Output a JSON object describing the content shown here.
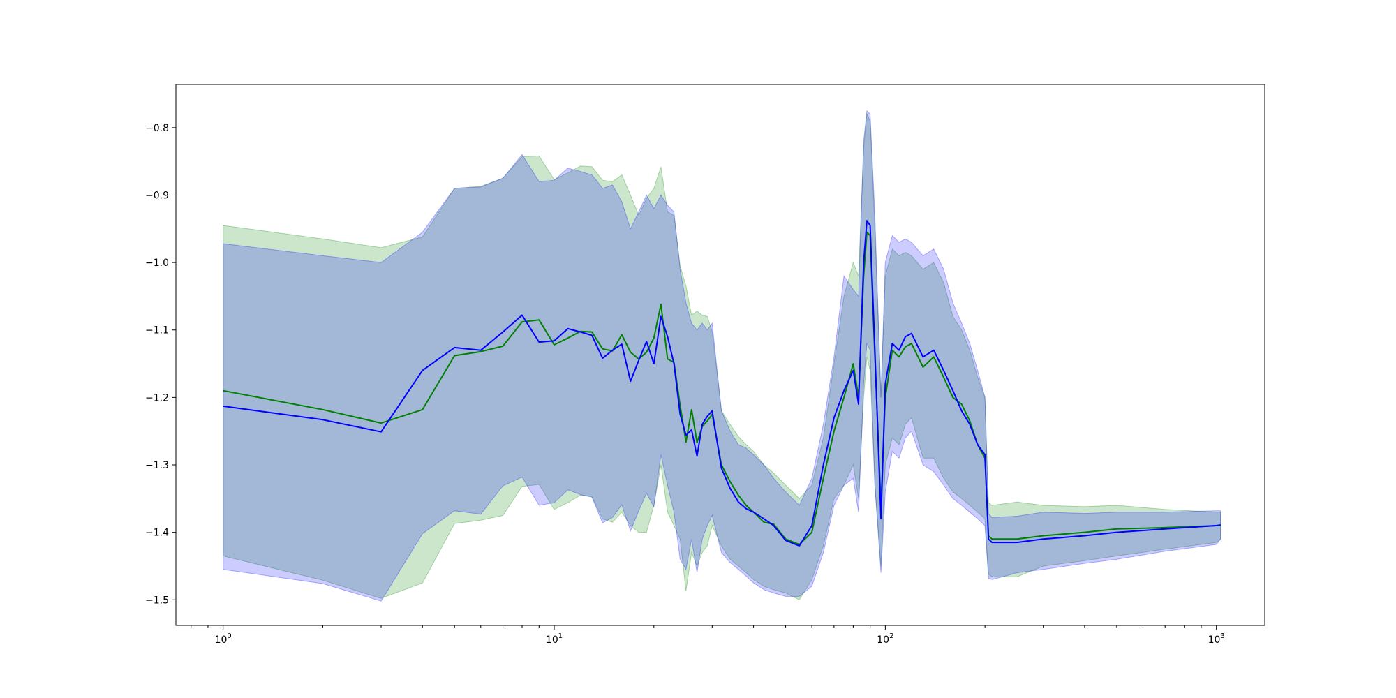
{
  "chart_data": {
    "type": "area",
    "title": "",
    "xlabel": "",
    "ylabel": "",
    "xscale": "log",
    "xlim": [
      0.72,
      1400
    ],
    "ylim": [
      -1.538,
      -0.736
    ],
    "grid": false,
    "legend": "none",
    "x_tick_labels": [
      {
        "value": 1,
        "base": "10",
        "exp": "0"
      },
      {
        "value": 10,
        "base": "10",
        "exp": "1"
      },
      {
        "value": 100,
        "base": "10",
        "exp": "2"
      },
      {
        "value": 1000,
        "base": "10",
        "exp": "3"
      }
    ],
    "y_ticks": [
      -0.8,
      -0.9,
      -1.0,
      -1.1,
      -1.2,
      -1.3,
      -1.4,
      -1.5
    ],
    "y_tick_labels": [
      "−0.8",
      "−0.9",
      "−1.0",
      "−1.1",
      "−1.2",
      "−1.3",
      "−1.4",
      "−1.5"
    ],
    "series": [
      {
        "color": "#008000",
        "band_color": "#008000",
        "band_opacity": 0.2,
        "x": [
          1,
          2,
          3,
          4,
          5,
          6,
          7,
          8,
          9,
          10,
          11,
          12,
          13,
          14,
          15,
          16,
          17,
          18,
          19,
          20,
          21,
          22,
          23,
          24,
          25,
          26,
          27,
          28,
          29,
          30,
          32,
          34,
          36,
          38,
          40,
          43,
          46,
          50,
          55,
          60,
          65,
          70,
          75,
          80,
          83,
          86,
          88,
          90,
          93,
          97,
          100,
          105,
          110,
          115,
          120,
          130,
          140,
          150,
          160,
          170,
          180,
          190,
          200,
          205,
          210,
          250,
          300,
          400,
          500,
          700,
          1000,
          1030
        ],
        "mean": [
          -1.19,
          -1.218,
          -1.238,
          -1.218,
          -1.138,
          -1.132,
          -1.124,
          -1.088,
          -1.085,
          -1.122,
          -1.112,
          -1.102,
          -1.103,
          -1.128,
          -1.131,
          -1.107,
          -1.133,
          -1.143,
          -1.133,
          -1.112,
          -1.062,
          -1.143,
          -1.148,
          -1.212,
          -1.266,
          -1.218,
          -1.267,
          -1.243,
          -1.235,
          -1.225,
          -1.3,
          -1.325,
          -1.345,
          -1.36,
          -1.37,
          -1.385,
          -1.388,
          -1.41,
          -1.418,
          -1.4,
          -1.32,
          -1.25,
          -1.2,
          -1.15,
          -1.2,
          -1.02,
          -0.955,
          -0.96,
          -1.14,
          -1.36,
          -1.2,
          -1.13,
          -1.14,
          -1.125,
          -1.12,
          -1.155,
          -1.14,
          -1.17,
          -1.2,
          -1.21,
          -1.235,
          -1.27,
          -1.29,
          -1.405,
          -1.41,
          -1.41,
          -1.405,
          -1.4,
          -1.395,
          -1.393,
          -1.39,
          -1.39
        ],
        "upper": [
          -0.945,
          -0.965,
          -0.978,
          -0.962,
          -0.89,
          -0.887,
          -0.875,
          -0.843,
          -0.842,
          -0.877,
          -0.867,
          -0.857,
          -0.858,
          -0.878,
          -0.88,
          -0.87,
          -0.9,
          -0.93,
          -0.905,
          -0.89,
          -0.858,
          -0.925,
          -0.93,
          -1.005,
          -1.035,
          -1.078,
          -1.072,
          -1.078,
          -1.08,
          -1.102,
          -1.22,
          -1.24,
          -1.258,
          -1.27,
          -1.28,
          -1.3,
          -1.312,
          -1.33,
          -1.35,
          -1.33,
          -1.26,
          -1.15,
          -1.05,
          -1.0,
          -1.02,
          -0.83,
          -0.78,
          -0.79,
          -0.95,
          -1.2,
          -1.02,
          -0.98,
          -0.99,
          -0.985,
          -0.99,
          -1.01,
          -1.0,
          -1.03,
          -1.08,
          -1.1,
          -1.13,
          -1.17,
          -1.2,
          -1.356,
          -1.36,
          -1.355,
          -1.36,
          -1.362,
          -1.36,
          -1.366,
          -1.37,
          -1.37
        ],
        "lower": [
          -1.435,
          -1.471,
          -1.498,
          -1.475,
          -1.387,
          -1.382,
          -1.375,
          -1.332,
          -1.329,
          -1.366,
          -1.356,
          -1.345,
          -1.347,
          -1.38,
          -1.385,
          -1.37,
          -1.39,
          -1.4,
          -1.4,
          -1.36,
          -1.3,
          -1.37,
          -1.39,
          -1.41,
          -1.487,
          -1.43,
          -1.45,
          -1.43,
          -1.42,
          -1.39,
          -1.42,
          -1.44,
          -1.45,
          -1.46,
          -1.47,
          -1.48,
          -1.485,
          -1.49,
          -1.5,
          -1.47,
          -1.42,
          -1.35,
          -1.33,
          -1.3,
          -1.35,
          -1.2,
          -1.14,
          -1.16,
          -1.33,
          -1.45,
          -1.3,
          -1.26,
          -1.27,
          -1.24,
          -1.23,
          -1.29,
          -1.29,
          -1.32,
          -1.34,
          -1.35,
          -1.36,
          -1.37,
          -1.38,
          -1.462,
          -1.466,
          -1.466,
          -1.45,
          -1.442,
          -1.435,
          -1.425,
          -1.415,
          -1.41
        ]
      },
      {
        "color": "#0000ff",
        "band_color": "#0000ff",
        "band_opacity": 0.2,
        "x": [
          1,
          2,
          3,
          4,
          5,
          6,
          7,
          8,
          9,
          10,
          11,
          12,
          13,
          14,
          15,
          16,
          17,
          18,
          19,
          20,
          21,
          22,
          23,
          24,
          25,
          26,
          27,
          28,
          29,
          30,
          32,
          34,
          36,
          38,
          40,
          43,
          46,
          50,
          55,
          60,
          65,
          70,
          75,
          80,
          83,
          86,
          88,
          90,
          93,
          97,
          100,
          105,
          110,
          115,
          120,
          130,
          140,
          150,
          160,
          170,
          180,
          190,
          200,
          205,
          210,
          250,
          300,
          400,
          500,
          700,
          1000,
          1030
        ],
        "mean": [
          -1.213,
          -1.233,
          -1.251,
          -1.16,
          -1.126,
          -1.13,
          -1.103,
          -1.078,
          -1.118,
          -1.116,
          -1.098,
          -1.103,
          -1.108,
          -1.142,
          -1.13,
          -1.121,
          -1.176,
          -1.145,
          -1.117,
          -1.15,
          -1.08,
          -1.11,
          -1.15,
          -1.225,
          -1.256,
          -1.248,
          -1.287,
          -1.24,
          -1.228,
          -1.22,
          -1.305,
          -1.335,
          -1.355,
          -1.365,
          -1.37,
          -1.38,
          -1.39,
          -1.412,
          -1.42,
          -1.39,
          -1.3,
          -1.23,
          -1.19,
          -1.16,
          -1.21,
          -1.0,
          -0.938,
          -0.945,
          -1.13,
          -1.38,
          -1.18,
          -1.12,
          -1.13,
          -1.11,
          -1.105,
          -1.14,
          -1.13,
          -1.16,
          -1.19,
          -1.22,
          -1.24,
          -1.27,
          -1.285,
          -1.41,
          -1.415,
          -1.415,
          -1.41,
          -1.405,
          -1.4,
          -1.395,
          -1.39,
          -1.389
        ],
        "upper": [
          -0.972,
          -0.99,
          -1.0,
          -0.955,
          -0.89,
          -0.888,
          -0.875,
          -0.84,
          -0.88,
          -0.878,
          -0.86,
          -0.865,
          -0.87,
          -0.89,
          -0.885,
          -0.91,
          -0.95,
          -0.925,
          -0.9,
          -0.92,
          -0.9,
          -0.915,
          -0.925,
          -1.01,
          -1.06,
          -1.09,
          -1.1,
          -1.09,
          -1.1,
          -1.09,
          -1.22,
          -1.25,
          -1.27,
          -1.275,
          -1.285,
          -1.3,
          -1.32,
          -1.34,
          -1.36,
          -1.32,
          -1.24,
          -1.14,
          -1.02,
          -1.04,
          -1.05,
          -0.82,
          -0.775,
          -0.78,
          -0.93,
          -1.2,
          -1.0,
          -0.96,
          -0.97,
          -0.965,
          -0.97,
          -0.99,
          -0.98,
          -1.01,
          -1.06,
          -1.09,
          -1.12,
          -1.16,
          -1.2,
          -1.372,
          -1.378,
          -1.376,
          -1.37,
          -1.372,
          -1.37,
          -1.37,
          -1.368,
          -1.368
        ],
        "lower": [
          -1.455,
          -1.476,
          -1.502,
          -1.402,
          -1.368,
          -1.373,
          -1.331,
          -1.318,
          -1.36,
          -1.356,
          -1.337,
          -1.344,
          -1.348,
          -1.386,
          -1.378,
          -1.359,
          -1.398,
          -1.368,
          -1.342,
          -1.362,
          -1.285,
          -1.33,
          -1.37,
          -1.44,
          -1.455,
          -1.41,
          -1.46,
          -1.41,
          -1.39,
          -1.375,
          -1.43,
          -1.445,
          -1.455,
          -1.465,
          -1.475,
          -1.485,
          -1.49,
          -1.495,
          -1.495,
          -1.48,
          -1.43,
          -1.36,
          -1.33,
          -1.32,
          -1.37,
          -1.18,
          -1.12,
          -1.13,
          -1.33,
          -1.46,
          -1.34,
          -1.28,
          -1.29,
          -1.26,
          -1.25,
          -1.3,
          -1.31,
          -1.33,
          -1.35,
          -1.36,
          -1.37,
          -1.38,
          -1.39,
          -1.468,
          -1.47,
          -1.46,
          -1.455,
          -1.446,
          -1.44,
          -1.428,
          -1.418,
          -1.41
        ]
      }
    ]
  }
}
